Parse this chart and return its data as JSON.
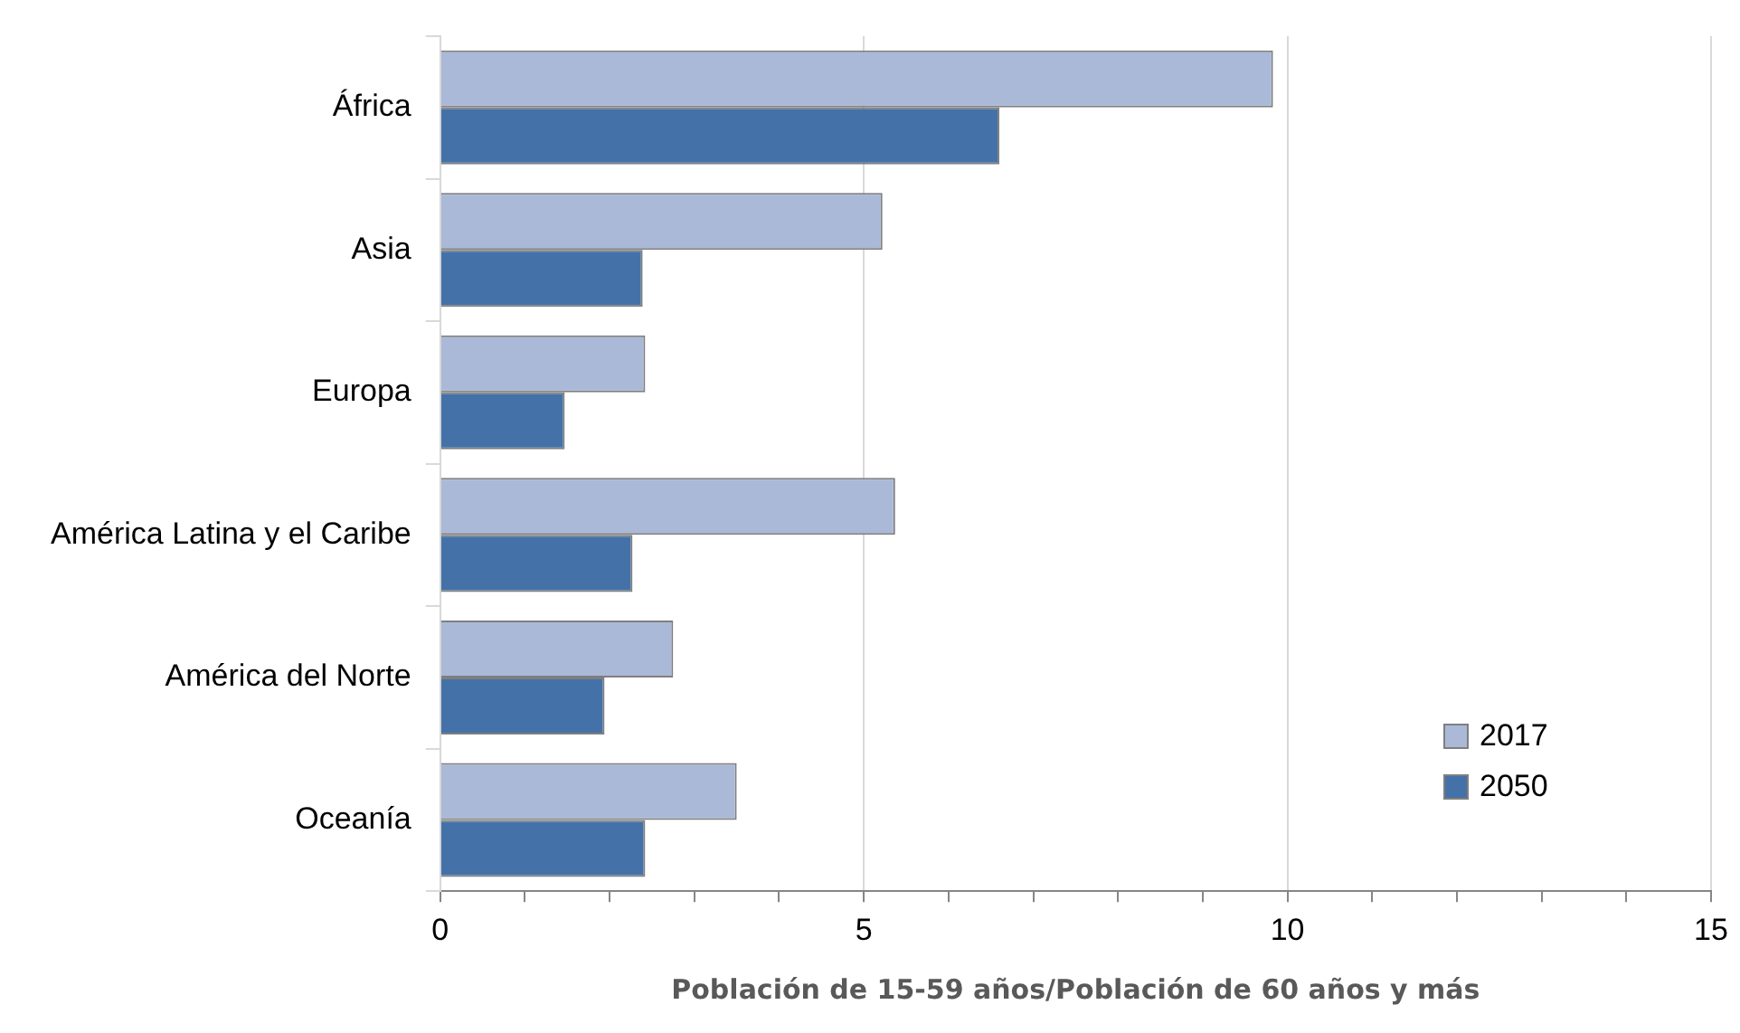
{
  "chart_data": {
    "type": "bar",
    "orientation": "horizontal",
    "xlabel": "Población de 15-59 años/Población de 60 años y más",
    "categories": [
      "África",
      "Asia",
      "Europa",
      "América Latina y el Caribe",
      "América del Norte",
      "Oceanía"
    ],
    "series": [
      {
        "name": "2017",
        "color": "#aab9d8",
        "values": [
          9.83,
          5.22,
          2.42,
          5.37,
          2.75,
          3.5
        ]
      },
      {
        "name": "2050",
        "color": "#4472a8",
        "values": [
          6.6,
          2.39,
          1.47,
          2.27,
          1.94,
          2.42
        ]
      }
    ],
    "xlim": [
      0,
      15
    ],
    "xticks": [
      0,
      {
        "value": 1,
        "label": null
      },
      {
        "value": 2,
        "label": null
      },
      {
        "value": 3,
        "label": null
      },
      {
        "value": 4,
        "label": null
      },
      5,
      {
        "value": 6,
        "label": null
      },
      {
        "value": 7,
        "label": null
      },
      {
        "value": 8,
        "label": null
      },
      {
        "value": 9,
        "label": null
      },
      10,
      {
        "value": 11,
        "label": null
      },
      {
        "value": 12,
        "label": null
      },
      {
        "value": 13,
        "label": null
      },
      {
        "value": 14,
        "label": null
      },
      15
    ],
    "grid": "x",
    "legend": "bottom right"
  }
}
